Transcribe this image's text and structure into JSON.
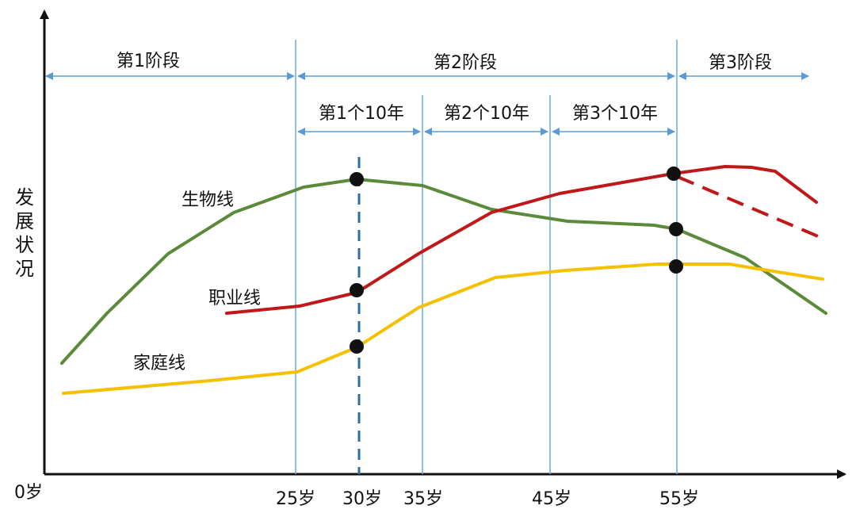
{
  "y_axis_label": [
    "发",
    "展",
    "状",
    "况"
  ],
  "x_axis": {
    "ticks": [
      {
        "label": "0岁",
        "age": 0
      },
      {
        "label": "25岁",
        "age": 25
      },
      {
        "label": "30岁",
        "age": 30
      },
      {
        "label": "35岁",
        "age": 35
      },
      {
        "label": "45岁",
        "age": 45
      },
      {
        "label": "55岁",
        "age": 55
      }
    ]
  },
  "stages": [
    {
      "label": "第1阶段",
      "from_age": 0,
      "to_age": 25
    },
    {
      "label": "第2阶段",
      "from_age": 25,
      "to_age": 55
    },
    {
      "label": "第3阶段",
      "from_age": 55,
      "to_age": 65
    }
  ],
  "decades": [
    {
      "label": "第1个10年",
      "from_age": 25,
      "to_age": 35
    },
    {
      "label": "第2个10年",
      "from_age": 35,
      "to_age": 45
    },
    {
      "label": "第3个10年",
      "from_age": 45,
      "to_age": 55
    }
  ],
  "lines": [
    {
      "label": "生物线",
      "color": "#5a8a3a"
    },
    {
      "label": "职业线",
      "color": "#c01818"
    },
    {
      "label": "家庭线",
      "color": "#f5c000"
    }
  ],
  "colors": {
    "axis": "#111111",
    "arrow": "#5b9bd5",
    "divider": "#6fa8dc",
    "marker_line": "#2e6ea6",
    "dot": "#111111"
  }
}
